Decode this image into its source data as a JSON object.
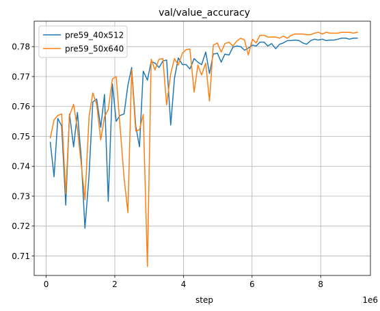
{
  "chart_data": {
    "type": "line",
    "title": "val/value_accuracy",
    "xlabel": "step",
    "ylabel": "",
    "x_offset_text": "1e6",
    "xlim": [
      -0.35,
      9.45
    ],
    "ylim": [
      0.7035,
      0.7885
    ],
    "xticks": [
      0,
      2,
      4,
      6,
      8
    ],
    "yticks": [
      0.71,
      0.72,
      0.73,
      0.74,
      0.75,
      0.76,
      0.77,
      0.78
    ],
    "grid": true,
    "legend_position": "upper-left",
    "series": [
      {
        "name": "pre59_40x512",
        "color": "#1f77b4",
        "x": [
          0.12,
          0.23,
          0.34,
          0.45,
          0.57,
          0.68,
          0.8,
          0.91,
          1.02,
          1.13,
          1.25,
          1.36,
          1.47,
          1.59,
          1.7,
          1.81,
          1.93,
          2.04,
          2.15,
          2.27,
          2.38,
          2.49,
          2.61,
          2.72,
          2.83,
          2.95,
          3.06,
          3.17,
          3.29,
          3.4,
          3.51,
          3.63,
          3.74,
          3.85,
          3.97,
          4.08,
          4.19,
          4.31,
          4.42,
          4.53,
          4.65,
          4.76,
          4.87,
          4.99,
          5.1,
          5.21,
          5.33,
          5.44,
          5.55,
          5.67,
          5.78,
          5.89,
          6.01,
          6.12,
          6.23,
          6.35,
          6.46,
          6.57,
          6.69,
          6.8,
          6.91,
          7.03,
          7.14,
          7.25,
          7.37,
          7.48,
          7.59,
          7.71,
          7.82,
          7.93,
          8.05,
          8.16,
          8.27,
          8.39,
          8.5,
          8.61,
          8.73,
          8.84,
          8.95,
          9.07
        ],
        "values": [
          0.748,
          0.7365,
          0.756,
          0.7535,
          0.727,
          0.7575,
          0.7465,
          0.758,
          0.743,
          0.7193,
          0.737,
          0.7615,
          0.7625,
          0.753,
          0.764,
          0.7283,
          0.7675,
          0.755,
          0.757,
          0.7575,
          0.767,
          0.773,
          0.7535,
          0.7465,
          0.7718,
          0.7688,
          0.775,
          0.7745,
          0.773,
          0.7752,
          0.7755,
          0.7538,
          0.7695,
          0.7762,
          0.774,
          0.774,
          0.7725,
          0.776,
          0.7748,
          0.774,
          0.7782,
          0.771,
          0.7775,
          0.7778,
          0.7748,
          0.7775,
          0.7772,
          0.7798,
          0.7802,
          0.78,
          0.7788,
          0.7795,
          0.7805,
          0.7802,
          0.7815,
          0.7815,
          0.7802,
          0.781,
          0.7793,
          0.7808,
          0.7812,
          0.782,
          0.782,
          0.7822,
          0.782,
          0.7812,
          0.7808,
          0.782,
          0.7825,
          0.7822,
          0.7825,
          0.782,
          0.7822,
          0.7822,
          0.7825,
          0.7828,
          0.7828,
          0.7825,
          0.7828,
          0.7828
        ]
      },
      {
        "name": "pre59_50x640",
        "color": "#ff7f0e",
        "x": [
          0.12,
          0.23,
          0.34,
          0.45,
          0.57,
          0.68,
          0.8,
          0.91,
          1.02,
          1.13,
          1.25,
          1.36,
          1.47,
          1.59,
          1.7,
          1.81,
          1.93,
          2.04,
          2.15,
          2.27,
          2.38,
          2.49,
          2.61,
          2.72,
          2.83,
          2.95,
          3.06,
          3.17,
          3.29,
          3.4,
          3.51,
          3.63,
          3.74,
          3.85,
          3.97,
          4.08,
          4.19,
          4.31,
          4.42,
          4.53,
          4.65,
          4.76,
          4.87,
          4.99,
          5.1,
          5.21,
          5.33,
          5.44,
          5.55,
          5.67,
          5.78,
          5.89,
          6.01,
          6.12,
          6.23,
          6.35,
          6.46,
          6.57,
          6.69,
          6.8,
          6.91,
          7.03,
          7.14,
          7.25,
          7.37,
          7.48,
          7.59,
          7.71,
          7.82,
          7.93,
          8.05,
          8.16,
          8.27,
          8.39,
          8.5,
          8.61,
          8.73,
          8.84,
          8.95,
          9.07
        ],
        "values": [
          0.7495,
          0.7555,
          0.757,
          0.7575,
          0.7308,
          0.757,
          0.7607,
          0.7525,
          0.7408,
          0.7288,
          0.7565,
          0.7645,
          0.7608,
          0.7488,
          0.7565,
          0.759,
          0.7692,
          0.77,
          0.7538,
          0.7362,
          0.7245,
          0.7722,
          0.7518,
          0.7522,
          0.7573,
          0.7065,
          0.7758,
          0.7722,
          0.7758,
          0.776,
          0.7605,
          0.771,
          0.776,
          0.7738,
          0.7778,
          0.779,
          0.7792,
          0.7648,
          0.7738,
          0.7705,
          0.7745,
          0.7618,
          0.7805,
          0.7812,
          0.7782,
          0.781,
          0.7815,
          0.7802,
          0.7818,
          0.7828,
          0.7822,
          0.7772,
          0.7825,
          0.7812,
          0.7838,
          0.7838,
          0.7832,
          0.7832,
          0.7832,
          0.7828,
          0.7835,
          0.7828,
          0.7838,
          0.7842,
          0.7842,
          0.7842,
          0.784,
          0.784,
          0.7845,
          0.7848,
          0.7842,
          0.7848,
          0.7845,
          0.7845,
          0.7845,
          0.7848,
          0.7848,
          0.7848,
          0.7845,
          0.7848
        ]
      }
    ]
  }
}
